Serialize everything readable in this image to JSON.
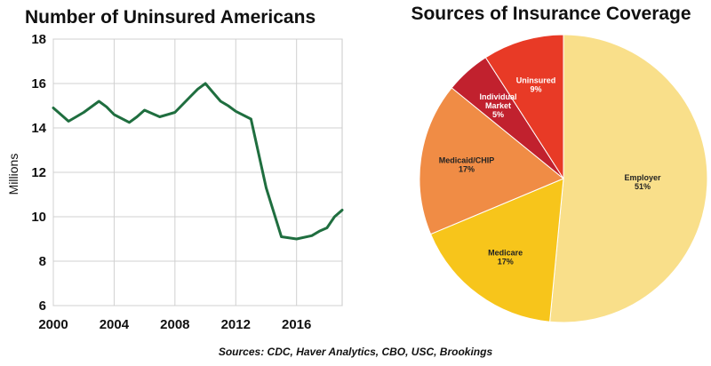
{
  "chart_data": [
    {
      "type": "line",
      "title": "Number of Uninsured Americans",
      "ylabel": "Millions",
      "xlabel": "",
      "xlim": [
        2000,
        2019
      ],
      "ylim": [
        6,
        18
      ],
      "x_ticks": [
        "2000",
        "2004",
        "2008",
        "2012",
        "2016"
      ],
      "y_ticks": [
        "6",
        "8",
        "10",
        "12",
        "14",
        "16",
        "18"
      ],
      "grid": true,
      "line_color": "#1f6e3f",
      "series": [
        {
          "x": [
            2000,
            2000.5,
            2001,
            2001.5,
            2002,
            2003,
            2003.5,
            2004,
            2005,
            2005.5,
            2006,
            2007,
            2008,
            2009,
            2009.5,
            2010,
            2010.5,
            2011,
            2011.5,
            2012,
            2013,
            2014,
            2015,
            2016,
            2017,
            2017.5,
            2018,
            2018.5,
            2019
          ],
          "y": [
            14.9,
            14.6,
            14.3,
            14.5,
            14.7,
            15.2,
            14.95,
            14.6,
            14.25,
            14.5,
            14.8,
            14.5,
            14.7,
            15.4,
            15.75,
            16.0,
            15.6,
            15.2,
            15.0,
            14.75,
            14.4,
            11.3,
            9.1,
            9.0,
            9.15,
            9.35,
            9.5,
            10.0,
            10.3
          ]
        }
      ]
    },
    {
      "type": "pie",
      "title": "Sources of Insurance Coverage",
      "slices": [
        {
          "label": "Employer",
          "pct_text": "51%",
          "value": 51,
          "color": "#f9df8a",
          "text_color": "#222222"
        },
        {
          "label": "Medicare",
          "pct_text": "17%",
          "value": 17,
          "color": "#f7c51b",
          "text_color": "#222222"
        },
        {
          "label": "Medicaid/CHIP",
          "pct_text": "17%",
          "value": 17,
          "color": "#f08c45",
          "text_color": "#222222"
        },
        {
          "label": "Individual Market",
          "label_lines": [
            "Individual",
            "Market"
          ],
          "pct_text": "5%",
          "value": 5,
          "color": "#c1212e",
          "text_color": "#ffffff"
        },
        {
          "label": "Uninsured",
          "pct_text": "9%",
          "value": 9,
          "color": "#e83a26",
          "text_color": "#ffffff"
        }
      ]
    }
  ],
  "footer": {
    "source": "Sources: CDC, Haver Analytics, CBO, USC, Brookings"
  }
}
